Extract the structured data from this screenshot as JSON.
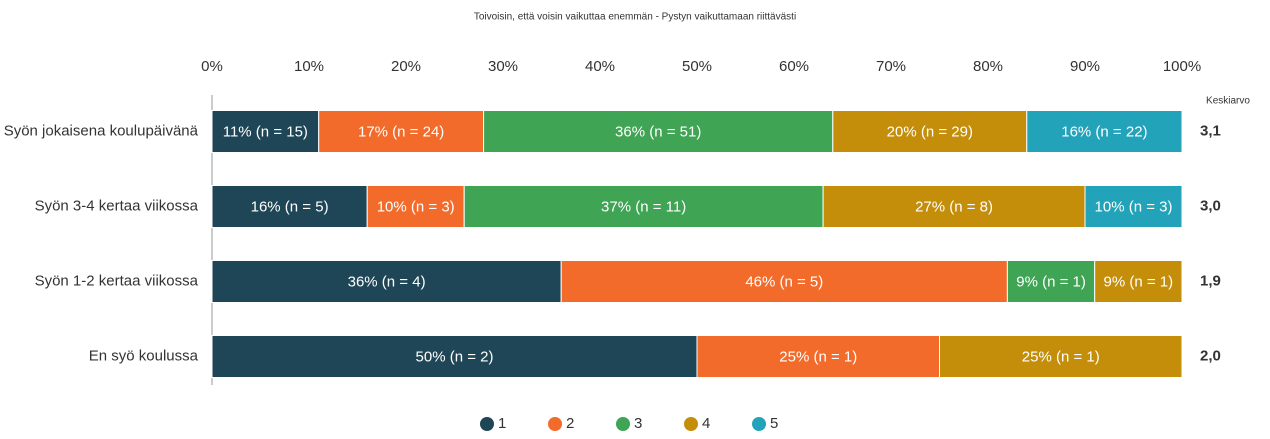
{
  "chart_data": {
    "type": "stacked_bar",
    "title": "Toivoisin, että voisin vaikuttaa enemmän - Pystyn vaikuttamaan riittävästi",
    "categories": [
      "Syön jokaisena koulupäivänä",
      "Syön 3-4 kertaa viikossa",
      "Syön 1-2 kertaa viikossa",
      "En syö koulussa"
    ],
    "series": [
      {
        "name": "1",
        "color": "#1f4656",
        "values": [
          11,
          16,
          36,
          50
        ],
        "value_labels": [
          "11% (n = 15)",
          "16% (n = 5)",
          "36% (n = 4)",
          "50% (n = 2)"
        ]
      },
      {
        "name": "2",
        "color": "#f26b2a",
        "values": [
          17,
          10,
          46,
          25
        ],
        "value_labels": [
          "17% (n = 24)",
          "10% (n = 3)",
          "46% (n = 5)",
          "25% (n = 1)"
        ]
      },
      {
        "name": "3",
        "color": "#3fa454",
        "values": [
          36,
          37,
          9,
          null
        ],
        "value_labels": [
          "36% (n = 51)",
          "37% (n = 11)",
          "9% (n = 1)",
          null
        ]
      },
      {
        "name": "4",
        "color": "#c48e0a",
        "values": [
          20,
          27,
          9,
          25
        ],
        "value_labels": [
          "20% (n = 29)",
          "27% (n = 8)",
          "9% (n = 1)",
          "25% (n = 1)"
        ]
      },
      {
        "name": "5",
        "color": "#22a3b9",
        "values": [
          16,
          10,
          null,
          null
        ],
        "value_labels": [
          "16% (n = 22)",
          "10% (n = 3)",
          null,
          null
        ]
      }
    ],
    "xlim": [
      0,
      100
    ],
    "xticks": [
      {
        "value": 0,
        "label": "0%"
      },
      {
        "value": 10,
        "label": "10%"
      },
      {
        "value": 20,
        "label": "20%"
      },
      {
        "value": 30,
        "label": "30%"
      },
      {
        "value": 40,
        "label": "40%"
      },
      {
        "value": 50,
        "label": "50%"
      },
      {
        "value": 60,
        "label": "60%"
      },
      {
        "value": 70,
        "label": "70%"
      },
      {
        "value": 80,
        "label": "80%"
      },
      {
        "value": 90,
        "label": "90%"
      },
      {
        "value": 100,
        "label": "100%"
      }
    ],
    "mean_header": "Keskiarvo",
    "mean_labels": [
      "3,1",
      "3,0",
      "1,9",
      "2,0"
    ],
    "legend": "bottom"
  }
}
